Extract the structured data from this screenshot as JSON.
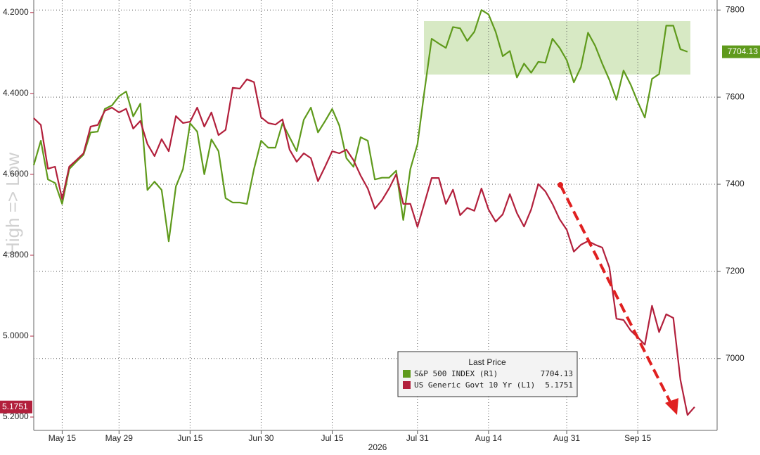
{
  "chart_data": {
    "type": "line",
    "ylabel": "High => Low",
    "xlabel": "2026",
    "legend_title": "Last Price",
    "categories": [
      null,
      null,
      null,
      null,
      "May 15",
      null,
      null,
      null,
      null,
      null,
      null,
      null,
      "May 29",
      null,
      null,
      null,
      null,
      null,
      null,
      null,
      null,
      null,
      "Jun 15",
      null,
      null,
      null,
      null,
      null,
      null,
      null,
      null,
      null,
      "Jun 30",
      null,
      null,
      null,
      null,
      null,
      null,
      null,
      null,
      null,
      "Jul 15",
      null,
      null,
      null,
      null,
      null,
      null,
      null,
      null,
      null,
      null,
      null,
      "Jul 31",
      null,
      null,
      null,
      null,
      null,
      null,
      null,
      null,
      null,
      "Aug 14",
      null,
      null,
      null,
      null,
      null,
      null,
      null,
      null,
      null,
      null,
      "Aug 31",
      null,
      null,
      null,
      null,
      null,
      null,
      null,
      null,
      null,
      "Sep 15",
      null,
      null,
      null,
      null,
      null,
      null,
      null,
      null
    ],
    "series": [
      {
        "name": "S&P 500 INDEX  (R1)",
        "color": "#5f9a1c",
        "axis": "y2",
        "values": [
          7444,
          7500,
          7411,
          7403,
          7355,
          7435,
          7452,
          7468,
          7519,
          7521,
          7573,
          7581,
          7602,
          7613,
          7556,
          7585,
          7387,
          7406,
          7387,
          7269,
          7395,
          7435,
          7540,
          7521,
          7423,
          7503,
          7476,
          7368,
          7358,
          7358,
          7355,
          7435,
          7500,
          7484,
          7484,
          7540,
          7508,
          7476,
          7548,
          7576,
          7519,
          7545,
          7573,
          7535,
          7460,
          7440,
          7508,
          7500,
          7411,
          7415,
          7415,
          7431,
          7318,
          7435,
          7492,
          7616,
          7734,
          7723,
          7713,
          7761,
          7758,
          7729,
          7750,
          7800,
          7790,
          7750,
          7694,
          7706,
          7645,
          7677,
          7656,
          7681,
          7679,
          7734,
          7713,
          7685,
          7634,
          7669,
          7748,
          7718,
          7677,
          7640,
          7594,
          7661,
          7629,
          7589,
          7553,
          7642,
          7653,
          7764,
          7764,
          7710,
          7704.13,
          null
        ]
      },
      {
        "name": "US Generic Govt 10 Yr  (L1)",
        "color": "#b2203c",
        "axis": "y",
        "values": [
          4.461,
          4.478,
          4.586,
          4.581,
          4.661,
          4.581,
          4.565,
          4.548,
          4.482,
          4.478,
          4.443,
          4.435,
          4.447,
          4.438,
          4.487,
          4.468,
          4.525,
          4.555,
          4.513,
          4.543,
          4.456,
          4.473,
          4.47,
          4.435,
          4.482,
          4.447,
          4.503,
          4.49,
          4.386,
          4.388,
          4.365,
          4.372,
          4.459,
          4.473,
          4.477,
          4.464,
          4.539,
          4.569,
          4.548,
          4.56,
          4.617,
          4.581,
          4.543,
          4.548,
          4.539,
          4.565,
          4.603,
          4.635,
          4.685,
          4.664,
          4.635,
          4.6,
          4.673,
          4.673,
          4.73,
          4.67,
          4.609,
          4.609,
          4.673,
          4.638,
          4.701,
          4.683,
          4.69,
          4.635,
          4.687,
          4.717,
          4.699,
          4.649,
          4.696,
          4.729,
          4.687,
          4.624,
          4.642,
          4.673,
          4.711,
          4.737,
          4.791,
          4.774,
          4.765,
          4.774,
          4.781,
          4.83,
          4.957,
          4.96,
          4.986,
          5.003,
          5.021,
          4.925,
          4.99,
          4.946,
          4.955,
          5.108,
          5.195,
          5.1751
        ]
      }
    ],
    "ylim": [
      5.233,
      4.169
    ],
    "yticks": [
      {
        "value": 4.2,
        "label": "4.2000"
      },
      {
        "value": 4.4,
        "label": "4.4000"
      },
      {
        "value": 4.6,
        "label": "4.6000"
      },
      {
        "value": 4.8,
        "label": "4.8000"
      },
      {
        "value": 5.0,
        "label": "5.0000"
      },
      {
        "value": 5.2,
        "label": "5.2000"
      }
    ],
    "y2lim": [
      6835,
      7823
    ],
    "y2ticks": [
      7000,
      7200,
      7400,
      7600,
      7800
    ],
    "grid": true
  }
}
